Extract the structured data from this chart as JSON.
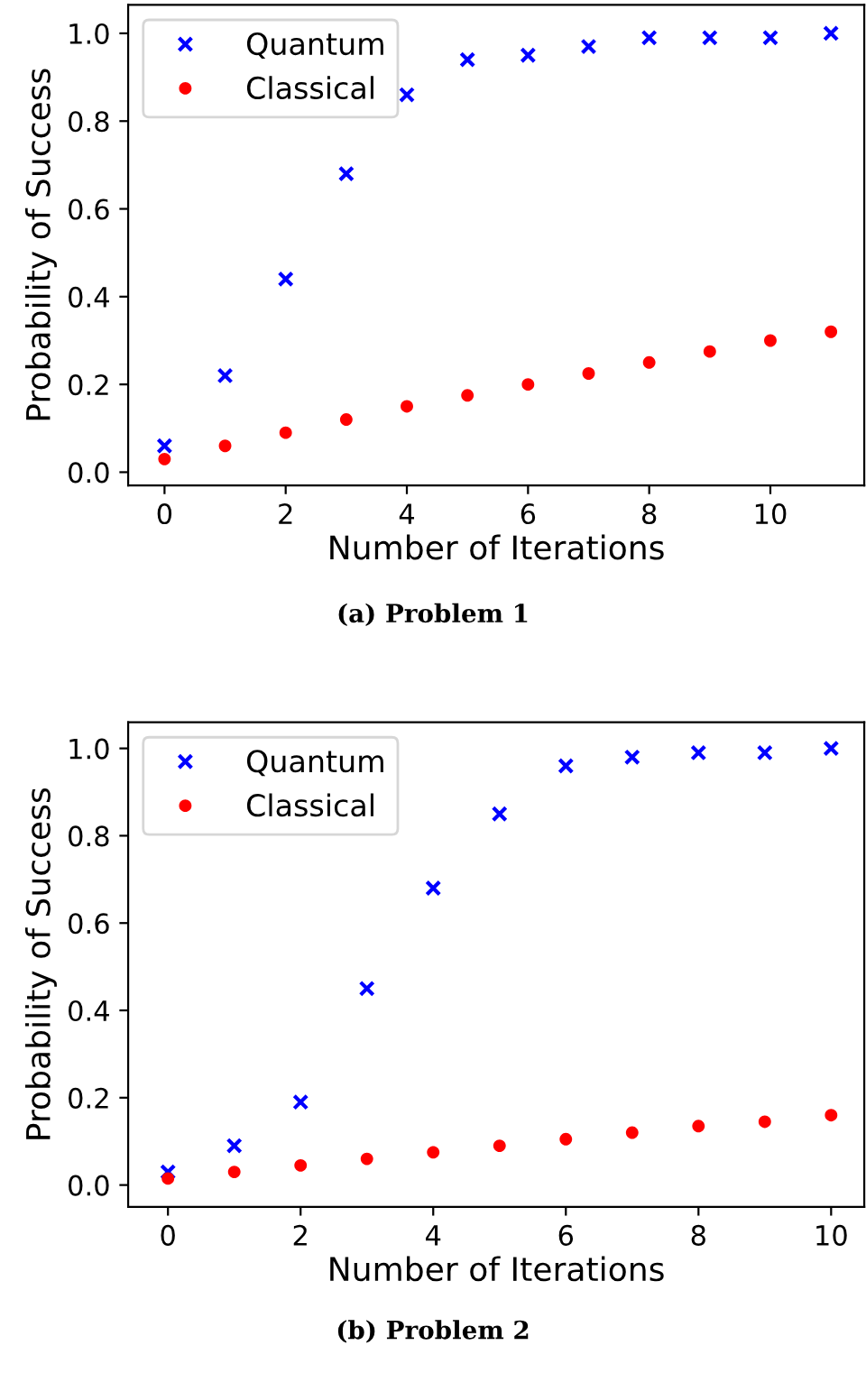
{
  "chart_data": [
    {
      "type": "scatter",
      "xlabel": "Number of Iterations",
      "ylabel": "Probability of Success",
      "x": [
        0,
        1,
        2,
        3,
        4,
        5,
        6,
        7,
        8,
        9,
        10,
        11
      ],
      "xlim": [
        -0.6,
        11.55
      ],
      "xticks": [
        0,
        2,
        4,
        6,
        8,
        10
      ],
      "ylim": [
        -0.03,
        1.065
      ],
      "yticks": [
        {
          "value": 0,
          "label": "0.0"
        },
        {
          "value": 0.2,
          "label": "0.2"
        },
        {
          "value": 0.4,
          "label": "0.4"
        },
        {
          "value": 0.6,
          "label": "0.6"
        },
        {
          "value": 0.8,
          "label": "0.8"
        },
        {
          "value": 1,
          "label": "1.0"
        }
      ],
      "legend": "top left",
      "grid": false,
      "annotations": [
        "(a) Problem 1"
      ],
      "series": [
        {
          "name": "Quantum",
          "color": "#0000ff",
          "marker": "cross",
          "values": [
            0.06,
            0.22,
            0.44,
            0.68,
            0.86,
            0.94,
            0.95,
            0.97,
            0.99,
            0.99,
            0.99,
            1.0
          ]
        },
        {
          "name": "Classical",
          "color": "#ff0000",
          "marker": "circle",
          "values": [
            0.03,
            0.06,
            0.09,
            0.12,
            0.15,
            0.175,
            0.2,
            0.225,
            0.25,
            0.275,
            0.3,
            0.32
          ]
        }
      ]
    },
    {
      "type": "scatter",
      "xlabel": "Number of Iterations",
      "ylabel": "Probability of Success",
      "x": [
        0,
        1,
        2,
        3,
        4,
        5,
        6,
        7,
        8,
        9,
        10
      ],
      "xlim": [
        -0.6,
        10.5
      ],
      "xticks": [
        0,
        2,
        4,
        6,
        8,
        10
      ],
      "ylim": [
        -0.05,
        1.06
      ],
      "yticks": [
        {
          "value": 0,
          "label": "0.0"
        },
        {
          "value": 0.2,
          "label": "0.2"
        },
        {
          "value": 0.4,
          "label": "0.4"
        },
        {
          "value": 0.6,
          "label": "0.6"
        },
        {
          "value": 0.8,
          "label": "0.8"
        },
        {
          "value": 1,
          "label": "1.0"
        }
      ],
      "legend": "top left",
      "grid": false,
      "annotations": [
        "(b) Problem 2"
      ],
      "series": [
        {
          "name": "Quantum",
          "color": "#0000ff",
          "marker": "cross",
          "values": [
            0.03,
            0.09,
            0.19,
            0.45,
            0.68,
            0.85,
            0.96,
            0.98,
            0.99,
            0.99,
            1.0
          ]
        },
        {
          "name": "Classical",
          "color": "#ff0000",
          "marker": "circle",
          "values": [
            0.015,
            0.03,
            0.045,
            0.06,
            0.075,
            0.09,
            0.105,
            0.12,
            0.135,
            0.145,
            0.16
          ]
        }
      ]
    }
  ]
}
